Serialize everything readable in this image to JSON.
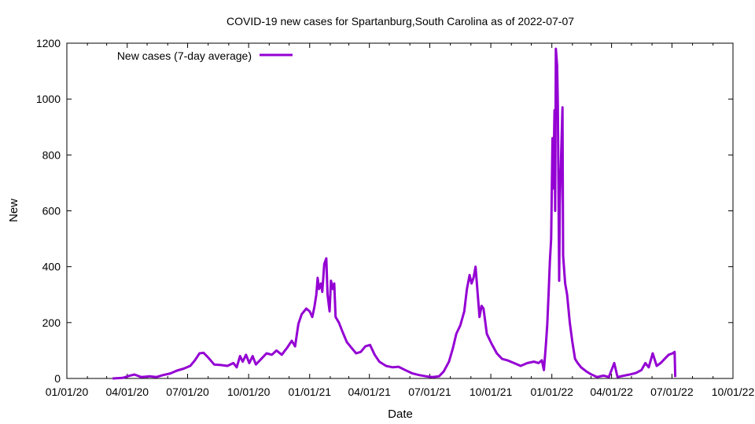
{
  "chart_data": {
    "type": "line",
    "title": "COVID-19 new cases for Spartanburg,South Carolina as of 2022-07-07",
    "xlabel": "Date",
    "ylabel": "New",
    "xlim": [
      "2020-01-01",
      "2022-10-01"
    ],
    "ylim": [
      0,
      1200
    ],
    "x_ticks": [
      "01/01/20",
      "04/01/20",
      "07/01/20",
      "10/01/20",
      "01/01/21",
      "04/01/21",
      "07/01/21",
      "10/01/21",
      "01/01/22",
      "04/01/22",
      "07/01/22",
      "10/01/22"
    ],
    "y_ticks": [
      0,
      200,
      400,
      600,
      800,
      1000,
      1200
    ],
    "grid": false,
    "legend_position": "top-left",
    "series": [
      {
        "name": "New cases (7-day average)",
        "color": "#9400d3",
        "points": [
          [
            "2020-03-10",
            0
          ],
          [
            "2020-03-25",
            2
          ],
          [
            "2020-04-05",
            10
          ],
          [
            "2020-04-12",
            14
          ],
          [
            "2020-04-22",
            5
          ],
          [
            "2020-05-05",
            8
          ],
          [
            "2020-05-15",
            5
          ],
          [
            "2020-05-25",
            12
          ],
          [
            "2020-06-05",
            18
          ],
          [
            "2020-06-15",
            28
          ],
          [
            "2020-06-25",
            35
          ],
          [
            "2020-07-05",
            45
          ],
          [
            "2020-07-12",
            65
          ],
          [
            "2020-07-19",
            90
          ],
          [
            "2020-07-25",
            92
          ],
          [
            "2020-08-01",
            75
          ],
          [
            "2020-08-10",
            50
          ],
          [
            "2020-08-20",
            48
          ],
          [
            "2020-08-30",
            45
          ],
          [
            "2020-09-08",
            55
          ],
          [
            "2020-09-13",
            40
          ],
          [
            "2020-09-18",
            80
          ],
          [
            "2020-09-22",
            60
          ],
          [
            "2020-09-27",
            85
          ],
          [
            "2020-10-02",
            55
          ],
          [
            "2020-10-07",
            80
          ],
          [
            "2020-10-12",
            50
          ],
          [
            "2020-10-20",
            70
          ],
          [
            "2020-10-28",
            90
          ],
          [
            "2020-11-05",
            85
          ],
          [
            "2020-11-12",
            100
          ],
          [
            "2020-11-20",
            85
          ],
          [
            "2020-11-28",
            110
          ],
          [
            "2020-12-05",
            135
          ],
          [
            "2020-12-10",
            115
          ],
          [
            "2020-12-15",
            195
          ],
          [
            "2020-12-20",
            230
          ],
          [
            "2020-12-27",
            250
          ],
          [
            "2021-01-01",
            240
          ],
          [
            "2021-01-05",
            220
          ],
          [
            "2021-01-08",
            255
          ],
          [
            "2021-01-11",
            300
          ],
          [
            "2021-01-13",
            360
          ],
          [
            "2021-01-15",
            320
          ],
          [
            "2021-01-18",
            340
          ],
          [
            "2021-01-20",
            310
          ],
          [
            "2021-01-23",
            410
          ],
          [
            "2021-01-26",
            430
          ],
          [
            "2021-01-28",
            300
          ],
          [
            "2021-01-31",
            240
          ],
          [
            "2021-02-02",
            350
          ],
          [
            "2021-02-05",
            320
          ],
          [
            "2021-02-07",
            340
          ],
          [
            "2021-02-09",
            220
          ],
          [
            "2021-02-14",
            200
          ],
          [
            "2021-02-19",
            170
          ],
          [
            "2021-02-26",
            130
          ],
          [
            "2021-03-05",
            110
          ],
          [
            "2021-03-12",
            90
          ],
          [
            "2021-03-19",
            95
          ],
          [
            "2021-03-26",
            115
          ],
          [
            "2021-04-02",
            120
          ],
          [
            "2021-04-09",
            85
          ],
          [
            "2021-04-16",
            60
          ],
          [
            "2021-04-26",
            45
          ],
          [
            "2021-05-06",
            40
          ],
          [
            "2021-05-15",
            42
          ],
          [
            "2021-05-25",
            30
          ],
          [
            "2021-06-05",
            18
          ],
          [
            "2021-06-15",
            12
          ],
          [
            "2021-06-25",
            8
          ],
          [
            "2021-07-05",
            5
          ],
          [
            "2021-07-15",
            8
          ],
          [
            "2021-07-22",
            25
          ],
          [
            "2021-07-30",
            60
          ],
          [
            "2021-08-05",
            110
          ],
          [
            "2021-08-10",
            160
          ],
          [
            "2021-08-16",
            190
          ],
          [
            "2021-08-22",
            240
          ],
          [
            "2021-08-26",
            320
          ],
          [
            "2021-08-30",
            370
          ],
          [
            "2021-09-02",
            340
          ],
          [
            "2021-09-05",
            360
          ],
          [
            "2021-09-08",
            400
          ],
          [
            "2021-09-11",
            310
          ],
          [
            "2021-09-14",
            220
          ],
          [
            "2021-09-17",
            260
          ],
          [
            "2021-09-20",
            250
          ],
          [
            "2021-09-25",
            160
          ],
          [
            "2021-10-02",
            125
          ],
          [
            "2021-10-10",
            90
          ],
          [
            "2021-10-18",
            70
          ],
          [
            "2021-10-26",
            65
          ],
          [
            "2021-11-05",
            55
          ],
          [
            "2021-11-15",
            45
          ],
          [
            "2021-11-25",
            55
          ],
          [
            "2021-12-05",
            60
          ],
          [
            "2021-12-12",
            55
          ],
          [
            "2021-12-17",
            65
          ],
          [
            "2021-12-20",
            30
          ],
          [
            "2021-12-23",
            120
          ],
          [
            "2021-12-25",
            190
          ],
          [
            "2021-12-27",
            300
          ],
          [
            "2021-12-29",
            420
          ],
          [
            "2021-12-31",
            500
          ],
          [
            "2022-01-02",
            860
          ],
          [
            "2022-01-03",
            680
          ],
          [
            "2022-01-05",
            960
          ],
          [
            "2022-01-06",
            600
          ],
          [
            "2022-01-07",
            1180
          ],
          [
            "2022-01-09",
            1120
          ],
          [
            "2022-01-10",
            980
          ],
          [
            "2022-01-12",
            350
          ],
          [
            "2022-01-13",
            620
          ],
          [
            "2022-01-15",
            800
          ],
          [
            "2022-01-17",
            970
          ],
          [
            "2022-01-18",
            440
          ],
          [
            "2022-01-21",
            340
          ],
          [
            "2022-01-24",
            300
          ],
          [
            "2022-01-28",
            200
          ],
          [
            "2022-02-01",
            130
          ],
          [
            "2022-02-05",
            70
          ],
          [
            "2022-02-09",
            55
          ],
          [
            "2022-02-14",
            40
          ],
          [
            "2022-02-22",
            25
          ],
          [
            "2022-03-01",
            15
          ],
          [
            "2022-03-10",
            5
          ],
          [
            "2022-03-20",
            10
          ],
          [
            "2022-03-28",
            5
          ],
          [
            "2022-04-05",
            55
          ],
          [
            "2022-04-10",
            5
          ],
          [
            "2022-04-20",
            10
          ],
          [
            "2022-04-30",
            15
          ],
          [
            "2022-05-08",
            20
          ],
          [
            "2022-05-16",
            30
          ],
          [
            "2022-05-22",
            55
          ],
          [
            "2022-05-27",
            40
          ],
          [
            "2022-06-02",
            90
          ],
          [
            "2022-06-08",
            45
          ],
          [
            "2022-06-14",
            55
          ],
          [
            "2022-06-20",
            70
          ],
          [
            "2022-06-26",
            85
          ],
          [
            "2022-07-02",
            90
          ],
          [
            "2022-07-05",
            95
          ],
          [
            "2022-07-06",
            5
          ]
        ]
      }
    ]
  }
}
